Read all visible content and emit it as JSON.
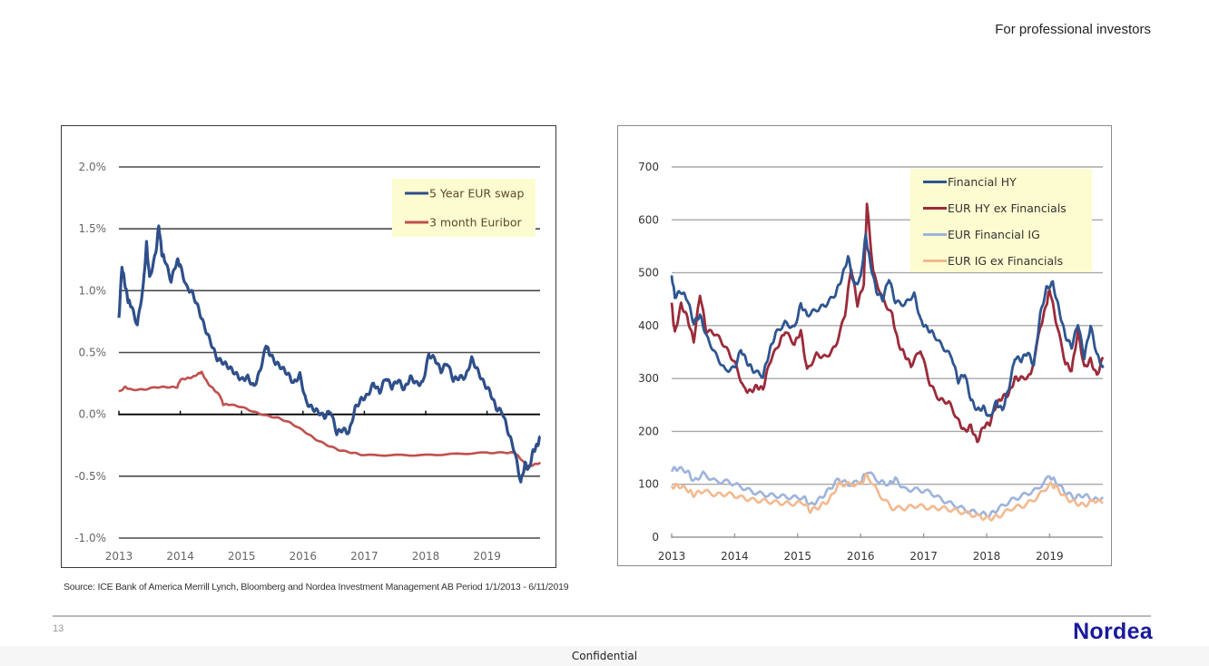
{
  "header": {
    "audience_note": "For professional investors"
  },
  "footer": {
    "source": "Source: ICE Bank of America Merrill Lynch, Bloomberg and Nordea Investment Management AB   Period 1/1/2013 - 6/11/2019",
    "page_number": "13",
    "logo_text": "Nordea",
    "confidential": "Confidential"
  },
  "colors": {
    "brand": "#1a1a9c",
    "swap": "#2f4f8a",
    "euribor": "#c0504d",
    "fin_hy": "#2e5590",
    "eur_hy_ex": "#9b2b3a",
    "fin_ig": "#9db3dc",
    "eur_ig_ex": "#f3b98f",
    "legend_bg": "#fdfcd0"
  },
  "chart_data": [
    {
      "type": "line",
      "title": "",
      "xlabel": "",
      "ylabel": "",
      "x_ticks": [
        "2013",
        "2014",
        "2015",
        "2016",
        "2017",
        "2018",
        "2019"
      ],
      "y_ticks": [
        "2.0%",
        "1.5%",
        "1.0%",
        "0.5%",
        "0.0%",
        "-0.5%",
        "-1.0%"
      ],
      "y_tick_values": [
        2.0,
        1.5,
        1.0,
        0.5,
        0.0,
        -0.5,
        -1.0
      ],
      "xlim": [
        2013,
        2019.87
      ],
      "ylim": [
        -1.0,
        2.0
      ],
      "grid": true,
      "legend": "top-right",
      "series": [
        {
          "name": "5 Year EUR swap",
          "x": [
            2013.0,
            2013.05,
            2013.1,
            2013.15,
            2013.2,
            2013.3,
            2013.4,
            2013.45,
            2013.5,
            2013.6,
            2013.65,
            2013.7,
            2013.75,
            2013.85,
            2013.95,
            2014.0,
            2014.1,
            2014.2,
            2014.3,
            2014.4,
            2014.5,
            2014.6,
            2014.7,
            2014.8,
            2014.9,
            2015.0,
            2015.1,
            2015.2,
            2015.3,
            2015.4,
            2015.45,
            2015.55,
            2015.65,
            2015.75,
            2015.85,
            2015.95,
            2016.05,
            2016.15,
            2016.25,
            2016.35,
            2016.45,
            2016.55,
            2016.65,
            2016.75,
            2016.85,
            2016.95,
            2017.05,
            2017.15,
            2017.25,
            2017.35,
            2017.45,
            2017.55,
            2017.65,
            2017.75,
            2017.85,
            2017.95,
            2018.05,
            2018.15,
            2018.25,
            2018.35,
            2018.45,
            2018.55,
            2018.65,
            2018.75,
            2018.85,
            2018.95,
            2019.05,
            2019.15,
            2019.25,
            2019.35,
            2019.45,
            2019.55,
            2019.62,
            2019.68,
            2019.75,
            2019.82,
            2019.87
          ],
          "values": [
            0.78,
            1.2,
            1.05,
            0.92,
            0.88,
            0.72,
            1.05,
            1.38,
            1.1,
            1.3,
            1.53,
            1.3,
            1.25,
            1.08,
            1.25,
            1.2,
            1.03,
            0.98,
            0.85,
            0.7,
            0.58,
            0.45,
            0.42,
            0.38,
            0.33,
            0.28,
            0.3,
            0.22,
            0.35,
            0.56,
            0.5,
            0.42,
            0.38,
            0.33,
            0.25,
            0.32,
            0.1,
            0.05,
            0.02,
            -0.02,
            0.03,
            -0.15,
            -0.12,
            -0.15,
            0.05,
            0.12,
            0.15,
            0.25,
            0.18,
            0.3,
            0.22,
            0.28,
            0.2,
            0.3,
            0.25,
            0.25,
            0.48,
            0.45,
            0.35,
            0.42,
            0.28,
            0.3,
            0.3,
            0.45,
            0.35,
            0.25,
            0.18,
            0.05,
            0.02,
            -0.15,
            -0.3,
            -0.55,
            -0.4,
            -0.45,
            -0.3,
            -0.25,
            -0.18
          ]
        },
        {
          "name": "3 month Euribor",
          "x": [
            2013.0,
            2013.1,
            2013.2,
            2013.4,
            2013.6,
            2013.8,
            2013.95,
            2014.0,
            2014.1,
            2014.2,
            2014.3,
            2014.35,
            2014.45,
            2014.55,
            2014.65,
            2014.7,
            2014.8,
            2015.0,
            2015.2,
            2015.4,
            2015.6,
            2015.8,
            2016.0,
            2016.2,
            2016.4,
            2016.6,
            2016.8,
            2017.0,
            2017.5,
            2018.0,
            2018.5,
            2019.0,
            2019.3,
            2019.45,
            2019.55,
            2019.65,
            2019.75,
            2019.87
          ],
          "values": [
            0.18,
            0.22,
            0.2,
            0.2,
            0.22,
            0.22,
            0.22,
            0.28,
            0.29,
            0.3,
            0.33,
            0.34,
            0.25,
            0.2,
            0.15,
            0.08,
            0.08,
            0.06,
            0.02,
            -0.01,
            -0.03,
            -0.07,
            -0.13,
            -0.2,
            -0.25,
            -0.29,
            -0.31,
            -0.33,
            -0.33,
            -0.33,
            -0.32,
            -0.31,
            -0.31,
            -0.31,
            -0.36,
            -0.42,
            -0.41,
            -0.39
          ]
        }
      ]
    },
    {
      "type": "line",
      "title": "",
      "xlabel": "",
      "ylabel": "",
      "x_ticks": [
        "2013",
        "2014",
        "2015",
        "2016",
        "2017",
        "2018",
        "2019"
      ],
      "y_ticks": [
        "700",
        "600",
        "500",
        "400",
        "300",
        "200",
        "100",
        "0"
      ],
      "y_tick_values": [
        700,
        600,
        500,
        400,
        300,
        200,
        100,
        0
      ],
      "xlim": [
        2013,
        2019.85
      ],
      "ylim": [
        0,
        700
      ],
      "grid": true,
      "legend": "top-right",
      "series": [
        {
          "name": "Financial HY",
          "x": [
            2013.0,
            2013.05,
            2013.15,
            2013.25,
            2013.35,
            2013.45,
            2013.55,
            2013.7,
            2013.85,
            2014.0,
            2014.1,
            2014.2,
            2014.3,
            2014.45,
            2014.55,
            2014.65,
            2014.8,
            2014.95,
            2015.05,
            2015.15,
            2015.3,
            2015.45,
            2015.6,
            2015.7,
            2015.8,
            2015.9,
            2016.0,
            2016.08,
            2016.15,
            2016.25,
            2016.35,
            2016.45,
            2016.55,
            2016.7,
            2016.85,
            2016.95,
            2017.05,
            2017.15,
            2017.3,
            2017.45,
            2017.55,
            2017.65,
            2017.75,
            2017.85,
            2017.95,
            2018.05,
            2018.15,
            2018.25,
            2018.35,
            2018.45,
            2018.55,
            2018.65,
            2018.75,
            2018.85,
            2018.95,
            2019.05,
            2019.15,
            2019.25,
            2019.35,
            2019.45,
            2019.55,
            2019.65,
            2019.75,
            2019.85
          ],
          "values": [
            495,
            455,
            465,
            450,
            405,
            420,
            380,
            345,
            315,
            320,
            355,
            330,
            315,
            305,
            350,
            385,
            405,
            395,
            440,
            420,
            430,
            440,
            460,
            490,
            530,
            475,
            490,
            570,
            520,
            465,
            450,
            490,
            445,
            440,
            460,
            410,
            395,
            385,
            360,
            340,
            295,
            310,
            260,
            240,
            245,
            225,
            255,
            240,
            280,
            340,
            335,
            350,
            325,
            420,
            470,
            480,
            430,
            380,
            360,
            405,
            340,
            400,
            345,
            320
          ]
        },
        {
          "name": "EUR HY ex Financials",
          "x": [
            2013.0,
            2013.05,
            2013.15,
            2013.25,
            2013.35,
            2013.45,
            2013.55,
            2013.7,
            2013.85,
            2014.0,
            2014.15,
            2014.25,
            2014.35,
            2014.45,
            2014.55,
            2014.7,
            2014.8,
            2014.95,
            2015.05,
            2015.15,
            2015.3,
            2015.45,
            2015.6,
            2015.75,
            2015.85,
            2015.95,
            2016.05,
            2016.1,
            2016.2,
            2016.35,
            2016.5,
            2016.6,
            2016.7,
            2016.8,
            2016.95,
            2017.1,
            2017.25,
            2017.4,
            2017.55,
            2017.65,
            2017.75,
            2017.85,
            2017.95,
            2018.05,
            2018.15,
            2018.25,
            2018.35,
            2018.45,
            2018.55,
            2018.7,
            2018.85,
            2018.95,
            2019.0,
            2019.1,
            2019.25,
            2019.35,
            2019.45,
            2019.55,
            2019.65,
            2019.75,
            2019.85
          ],
          "values": [
            440,
            385,
            440,
            415,
            370,
            460,
            390,
            385,
            360,
            330,
            280,
            275,
            285,
            280,
            330,
            365,
            390,
            365,
            390,
            315,
            345,
            340,
            360,
            420,
            510,
            440,
            480,
            630,
            500,
            450,
            420,
            365,
            345,
            325,
            355,
            290,
            260,
            255,
            220,
            200,
            210,
            180,
            210,
            215,
            250,
            265,
            270,
            300,
            300,
            305,
            395,
            440,
            470,
            410,
            330,
            315,
            390,
            320,
            335,
            305,
            340
          ]
        },
        {
          "name": "EUR Financial IG",
          "x": [
            2013.0,
            2013.1,
            2013.25,
            2013.35,
            2013.5,
            2013.7,
            2013.9,
            2014.1,
            2014.3,
            2014.5,
            2014.7,
            2014.9,
            2015.1,
            2015.2,
            2015.35,
            2015.5,
            2015.65,
            2015.8,
            2016.0,
            2016.1,
            2016.3,
            2016.45,
            2016.55,
            2016.7,
            2016.9,
            2017.1,
            2017.3,
            2017.5,
            2017.7,
            2017.9,
            2018.05,
            2018.2,
            2018.4,
            2018.6,
            2018.8,
            2019.0,
            2019.1,
            2019.25,
            2019.4,
            2019.55,
            2019.7,
            2019.85
          ],
          "values": [
            128,
            130,
            125,
            105,
            120,
            105,
            105,
            95,
            85,
            80,
            78,
            75,
            75,
            60,
            72,
            90,
            110,
            100,
            105,
            125,
            105,
            100,
            110,
            90,
            90,
            85,
            70,
            60,
            50,
            45,
            42,
            55,
            70,
            80,
            90,
            115,
            105,
            85,
            75,
            80,
            70,
            75
          ]
        },
        {
          "name": "EUR IG ex Financials",
          "x": [
            2013.0,
            2013.1,
            2013.25,
            2013.35,
            2013.5,
            2013.7,
            2013.9,
            2014.1,
            2014.3,
            2014.5,
            2014.7,
            2014.9,
            2015.1,
            2015.2,
            2015.35,
            2015.5,
            2015.65,
            2015.8,
            2016.0,
            2016.1,
            2016.3,
            2016.5,
            2016.7,
            2016.9,
            2017.1,
            2017.3,
            2017.5,
            2017.7,
            2017.9,
            2018.05,
            2018.2,
            2018.4,
            2018.6,
            2018.8,
            2019.0,
            2019.1,
            2019.25,
            2019.4,
            2019.55,
            2019.7,
            2019.85
          ],
          "values": [
            95,
            98,
            90,
            80,
            88,
            80,
            82,
            75,
            70,
            68,
            65,
            63,
            65,
            50,
            58,
            70,
            100,
            100,
            100,
            118,
            80,
            55,
            55,
            60,
            55,
            55,
            50,
            45,
            38,
            35,
            40,
            55,
            60,
            75,
            100,
            95,
            75,
            65,
            60,
            70,
            65
          ]
        }
      ]
    }
  ]
}
